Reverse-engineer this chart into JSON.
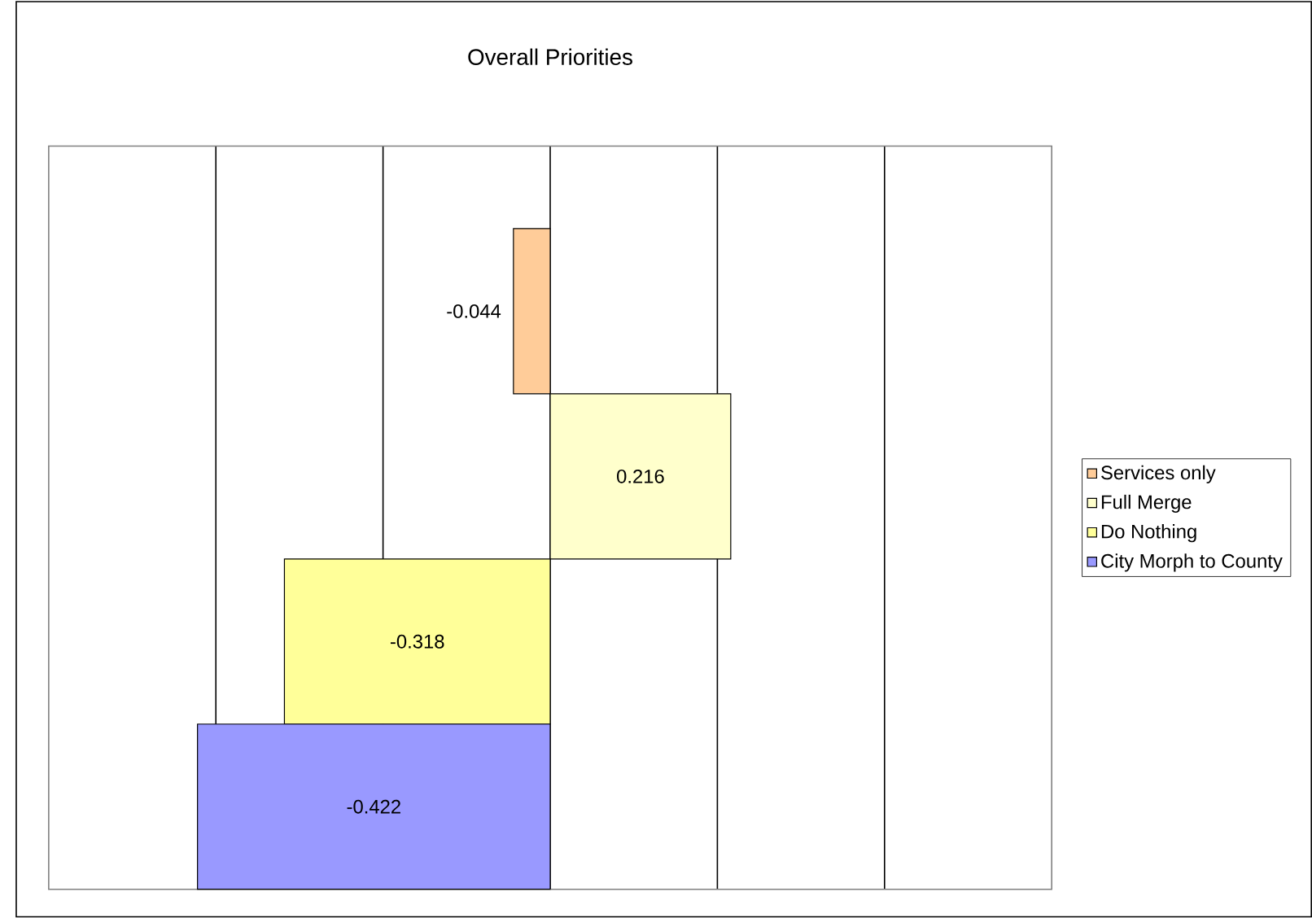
{
  "chart_data": {
    "type": "bar",
    "orientation": "horizontal",
    "title": "Overall Priorities",
    "categories": [
      null
    ],
    "series": [
      {
        "name": "Services only",
        "color": "#ffcc99",
        "values": [
          -0.044
        ]
      },
      {
        "name": "Full Merge",
        "color": "#ffffcc",
        "values": [
          0.216
        ]
      },
      {
        "name": "Do Nothing",
        "color": "#ffff99",
        "values": [
          -0.318
        ]
      },
      {
        "name": "City Morph to County",
        "color": "#9999ff",
        "values": [
          -0.422
        ]
      }
    ],
    "xlim": [
      -0.6,
      0.6
    ],
    "xticks": [
      {
        "value": -0.4,
        "label": null
      },
      {
        "value": -0.2,
        "label": null
      },
      {
        "value": 0,
        "label": null
      },
      {
        "value": 0.2,
        "label": null
      },
      {
        "value": 0.4,
        "label": null
      }
    ],
    "grid": "x",
    "tick_labels": false,
    "data_labels": true,
    "legend": "right"
  }
}
